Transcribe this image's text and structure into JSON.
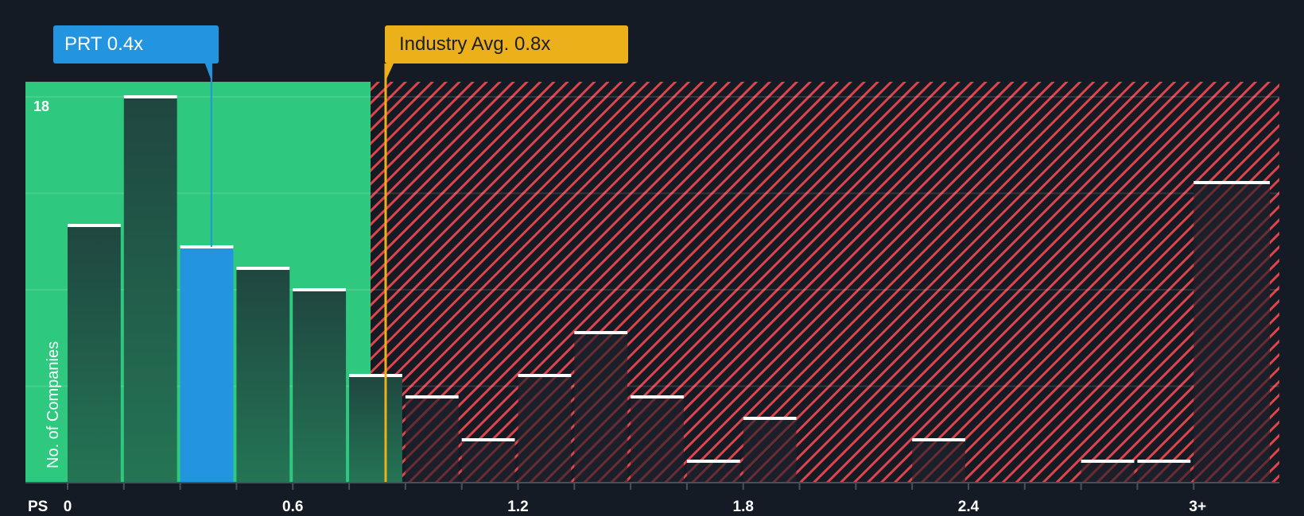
{
  "callouts": {
    "company": {
      "label": "PRT 0.4x",
      "value": 0.4,
      "color": "#2394df"
    },
    "industry": {
      "label": "Industry Avg. 0.8x",
      "value": 0.8,
      "color": "#ecb11a"
    }
  },
  "axis": {
    "y_title": "No. of Companies",
    "y_max_label": "18",
    "x_prefix": "PS",
    "x_ticks": [
      {
        "label": "0",
        "value": 0
      },
      {
        "label": "0.6",
        "value": 0.6
      },
      {
        "label": "1.2",
        "value": 1.2
      },
      {
        "label": "1.8",
        "value": 1.8
      },
      {
        "label": "2.4",
        "value": 2.4
      },
      {
        "label": "3+",
        "value": 3.0
      }
    ]
  },
  "colors": {
    "background": "#151b24",
    "fair_zone": "#2ec87e",
    "bar_dark": "#214a40",
    "highlight_bar": "#2394df",
    "overvalued_hatch": "#e0434a",
    "bar_cap": "#ffffff"
  },
  "chart_data": {
    "type": "bar",
    "title": "Price to Sales Ratio distribution",
    "xlabel": "PS",
    "ylabel": "No. of Companies",
    "ylim": [
      0,
      18
    ],
    "bin_width": 0.15,
    "categories": [
      "0-0.15",
      "0.15-0.3",
      "0.3-0.45",
      "0.45-0.6",
      "0.6-0.75",
      "0.75-0.9",
      "0.9-1.05",
      "1.05-1.2",
      "1.2-1.35",
      "1.35-1.5",
      "1.5-1.65",
      "1.65-1.8",
      "1.8-1.95",
      "1.95-2.1",
      "2.1-2.25",
      "2.25-2.4",
      "2.4-2.55",
      "2.55-2.7",
      "2.7-2.85",
      "2.85-3.0",
      "3+"
    ],
    "values": [
      12,
      18,
      11,
      10,
      9,
      5,
      4,
      2,
      5,
      7,
      4,
      1,
      3,
      0,
      0,
      2,
      0,
      0,
      1,
      1,
      14
    ],
    "highlight_index": 2,
    "gridlines": [
      4.5,
      9,
      13.5,
      18
    ],
    "annotations": [
      {
        "text": "PRT 0.4x",
        "x": 0.4
      },
      {
        "text": "Industry Avg. 0.8x",
        "x": 0.8
      }
    ],
    "fair_zone_until": 0.77
  }
}
